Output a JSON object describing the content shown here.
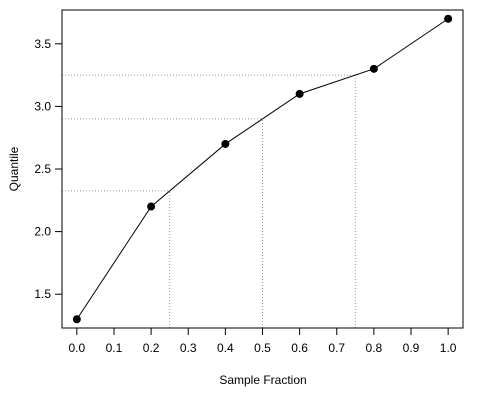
{
  "chart_data": {
    "type": "line",
    "title": "",
    "xlabel": "Sample Fraction",
    "ylabel": "Quantile",
    "xlim": [
      -0.04,
      1.04
    ],
    "ylim": [
      1.23,
      3.77
    ],
    "x_ticks": [
      0.0,
      0.1,
      0.2,
      0.3,
      0.4,
      0.5,
      0.6,
      0.7,
      0.8,
      0.9,
      1.0
    ],
    "x_tick_labels": [
      "0.0",
      "0.1",
      "0.2",
      "0.3",
      "0.4",
      "0.5",
      "0.6",
      "0.7",
      "0.8",
      "0.9",
      "1.0"
    ],
    "y_ticks": [
      1.5,
      2.0,
      2.5,
      3.0,
      3.5
    ],
    "y_tick_labels": [
      "1.5",
      "2.0",
      "2.5",
      "3.0",
      "3.5"
    ],
    "grid": false,
    "series": [
      {
        "x": [
          0.0,
          0.2,
          0.4,
          0.6,
          0.8,
          1.0
        ],
        "y": [
          1.3,
          2.2,
          2.7,
          3.1,
          3.3,
          3.7
        ]
      }
    ],
    "reference_lines": [
      {
        "x": 0.25,
        "y": 2.325
      },
      {
        "x": 0.5,
        "y": 2.9
      },
      {
        "x": 0.75,
        "y": 3.25
      }
    ],
    "colors": {
      "line": "#000000",
      "points": "#000000",
      "reference": "#999999"
    }
  }
}
